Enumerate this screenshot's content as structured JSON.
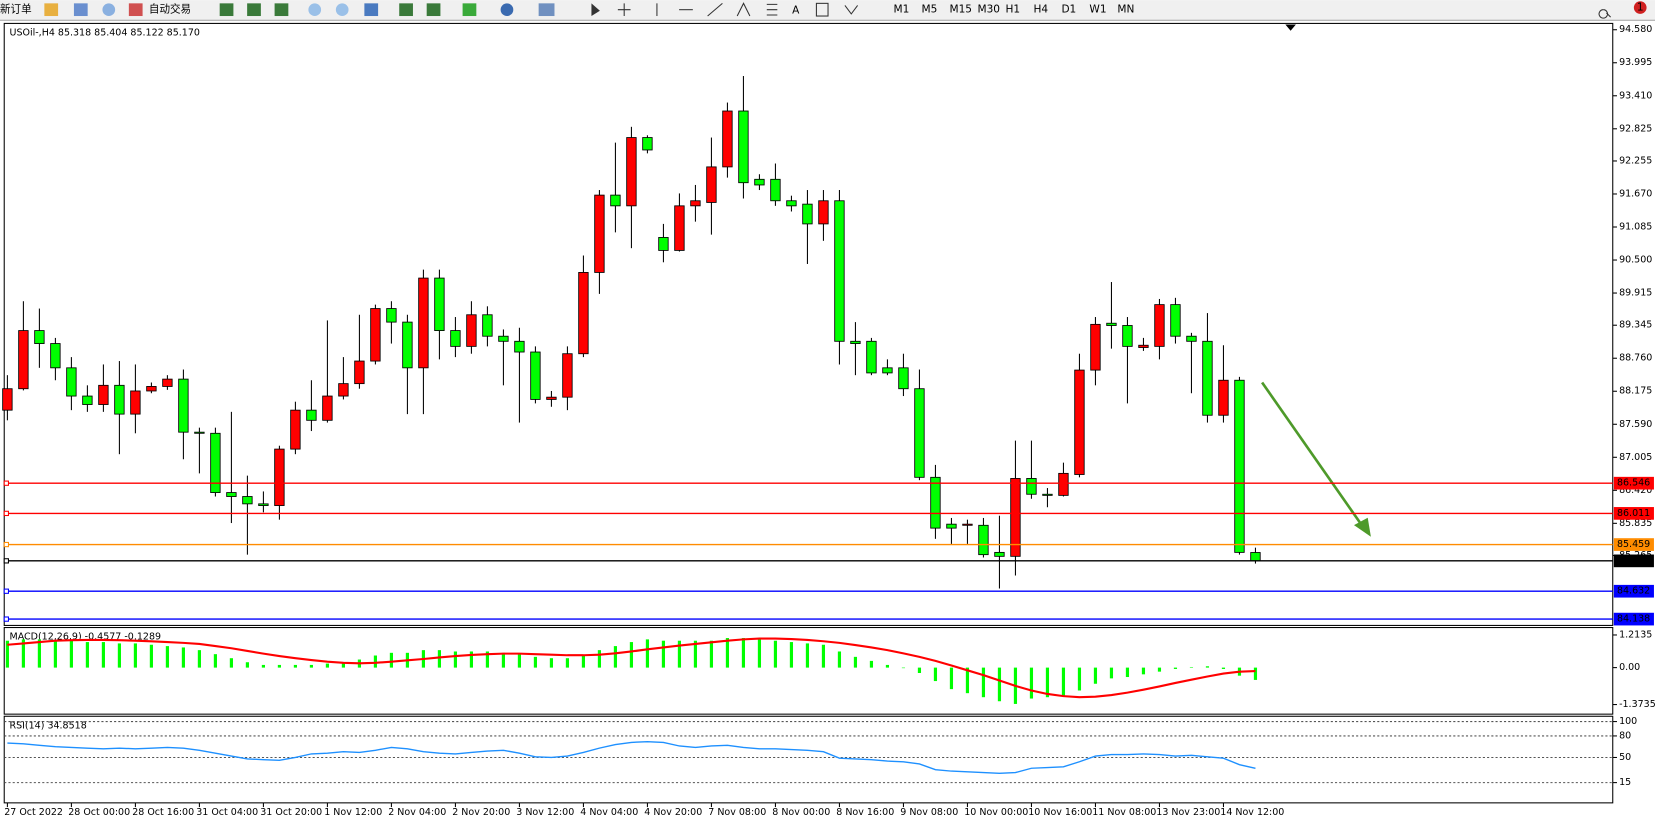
{
  "toolbar": {
    "buttons": [
      "新订单",
      "自动交易"
    ],
    "timeframes": [
      "M1",
      "M5",
      "M15",
      "M30",
      "H1",
      "H4",
      "D1",
      "W1",
      "MN"
    ],
    "notification_count": 1
  },
  "chart_data": [
    {
      "type": "candlestick",
      "title": "USOil-,H4  85.318 85.404 85.122 85.170",
      "categories": [
        "27 Oct 2022",
        null,
        null,
        null,
        "28 Oct 00:00",
        null,
        null,
        null,
        "28 Oct 16:00",
        null,
        null,
        null,
        "31 Oct 04:00",
        null,
        null,
        null,
        "31 Oct 20:00",
        null,
        null,
        null,
        "1 Nov 12:00",
        null,
        null,
        null,
        "2 Nov 04:00",
        null,
        null,
        null,
        "2 Nov 20:00",
        null,
        null,
        null,
        "3 Nov 12:00",
        null,
        null,
        null,
        "4 Nov 04:00",
        null,
        null,
        null,
        "4 Nov 20:00",
        null,
        null,
        null,
        "7 Nov 08:00",
        null,
        null,
        null,
        "8 Nov 00:00",
        null,
        null,
        null,
        "8 Nov 16:00",
        null,
        null,
        null,
        "9 Nov 08:00",
        null,
        null,
        null,
        "10 Nov 00:00",
        null,
        null,
        null,
        "10 Nov 16:00",
        null,
        null,
        null,
        "11 Nov 08:00",
        null,
        null,
        null,
        "13 Nov 23:00",
        null,
        null,
        null,
        "14 Nov 12:00",
        null,
        null
      ],
      "open": [
        87.84,
        88.22,
        89.25,
        89.02,
        88.59,
        88.09,
        87.94,
        88.28,
        87.77,
        88.18,
        88.26,
        88.39,
        87.45,
        87.43,
        86.38,
        86.31,
        86.18,
        86.15,
        87.15,
        87.84,
        87.66,
        88.09,
        88.31,
        88.71,
        89.64,
        89.4,
        88.59,
        90.18,
        89.25,
        88.97,
        89.53,
        89.15,
        89.06,
        88.87,
        88.03,
        88.07,
        88.84,
        90.28,
        91.65,
        91.46,
        92.67,
        90.9,
        90.67,
        91.46,
        91.52,
        92.15,
        93.14,
        91.93,
        91.93,
        91.55,
        91.49,
        91.14,
        91.55,
        89.06,
        89.06,
        88.59,
        88.59,
        88.22,
        86.65,
        85.82,
        85.8,
        85.8,
        85.32,
        85.25,
        86.63,
        86.35,
        86.33,
        86.7,
        88.55,
        89.38,
        89.34,
        88.95,
        88.97,
        89.71,
        89.15,
        89.06,
        87.75,
        88.37,
        85.318
      ],
      "high": [
        88.46,
        89.77,
        89.64,
        89.12,
        88.78,
        88.28,
        88.65,
        88.71,
        88.65,
        88.33,
        88.46,
        88.56,
        87.53,
        87.53,
        87.81,
        86.68,
        86.4,
        87.21,
        87.99,
        88.37,
        89.43,
        88.78,
        89.53,
        89.71,
        89.77,
        89.53,
        90.33,
        90.33,
        89.49,
        89.77,
        89.68,
        89.27,
        89.3,
        88.97,
        88.18,
        88.97,
        90.58,
        91.74,
        92.58,
        92.86,
        92.71,
        91.14,
        91.68,
        91.83,
        92.67,
        93.29,
        93.76,
        92.02,
        92.21,
        91.64,
        91.74,
        91.74,
        91.74,
        89.4,
        89.12,
        88.74,
        88.84,
        88.56,
        86.87,
        85.93,
        85.9,
        85.93,
        85.97,
        87.3,
        87.3,
        86.46,
        86.91,
        88.84,
        89.49,
        90.11,
        89.49,
        89.12,
        89.81,
        89.83,
        89.21,
        89.56,
        88.99,
        88.43,
        85.404
      ],
      "low": [
        87.66,
        88.19,
        88.59,
        88.37,
        87.84,
        87.81,
        87.81,
        87.06,
        87.43,
        88.14,
        88.2,
        86.97,
        86.72,
        86.31,
        85.84,
        85.28,
        86.03,
        85.9,
        87.06,
        87.47,
        87.62,
        88.03,
        88.22,
        88.65,
        89.02,
        87.77,
        87.77,
        88.74,
        88.78,
        88.84,
        88.97,
        88.28,
        87.62,
        87.96,
        87.9,
        87.84,
        88.78,
        89.9,
        90.99,
        90.71,
        92.39,
        90.46,
        90.65,
        91.18,
        90.95,
        91.96,
        91.59,
        91.74,
        91.46,
        91.36,
        90.43,
        90.84,
        88.65,
        88.46,
        88.46,
        88.46,
        88.09,
        86.6,
        85.56,
        85.47,
        85.47,
        85.23,
        84.68,
        84.91,
        86.27,
        86.12,
        86.31,
        86.65,
        88.28,
        88.93,
        87.96,
        88.89,
        88.74,
        89.02,
        88.14,
        87.62,
        87.62,
        85.28,
        85.122
      ],
      "close": [
        88.22,
        89.25,
        89.02,
        88.59,
        88.09,
        87.94,
        88.28,
        87.77,
        88.18,
        88.26,
        88.39,
        87.45,
        87.43,
        86.38,
        86.31,
        86.18,
        86.15,
        87.15,
        87.84,
        87.66,
        88.09,
        88.31,
        88.71,
        89.64,
        89.4,
        88.59,
        90.18,
        89.25,
        88.97,
        89.53,
        89.15,
        89.06,
        88.87,
        88.03,
        88.07,
        88.84,
        90.28,
        91.65,
        91.46,
        92.67,
        92.45,
        90.67,
        91.46,
        91.55,
        92.15,
        93.14,
        91.87,
        91.83,
        91.55,
        91.46,
        91.14,
        91.55,
        89.06,
        89.02,
        88.5,
        88.5,
        88.22,
        86.65,
        85.75,
        85.75,
        85.82,
        85.28,
        85.25,
        86.63,
        86.35,
        86.33,
        86.72,
        88.55,
        89.36,
        89.34,
        88.97,
        88.99,
        89.71,
        89.15,
        89.06,
        87.75,
        88.37,
        85.32,
        85.17
      ],
      "up_color": "#ff0000",
      "down_color": "#00ff00",
      "ylim": [
        84.026,
        94.692
      ],
      "yticks": [
        {
          "value": 94.58,
          "label": "94.580"
        },
        {
          "value": 93.995,
          "label": "93.995"
        },
        {
          "value": 93.41,
          "label": "93.410"
        },
        {
          "value": 92.825,
          "label": "92.825"
        },
        {
          "value": 92.255,
          "label": "92.255"
        },
        {
          "value": 91.67,
          "label": "91.670"
        },
        {
          "value": 91.085,
          "label": "91.085"
        },
        {
          "value": 90.5,
          "label": "90.500"
        },
        {
          "value": 89.915,
          "label": "89.915"
        },
        {
          "value": 89.345,
          "label": "89.345"
        },
        {
          "value": 88.76,
          "label": "88.760"
        },
        {
          "value": 88.175,
          "label": "88.175"
        },
        {
          "value": 87.59,
          "label": "87.590"
        },
        {
          "value": 87.005,
          "label": "87.005"
        },
        {
          "value": 86.42,
          "label": "86.420"
        },
        {
          "value": 85.835,
          "label": "85.835"
        },
        {
          "value": 85.265,
          "label": "85.265"
        }
      ],
      "levels": [
        {
          "value": 86.546,
          "color": "#ff0000"
        },
        {
          "value": 86.011,
          "color": "#ff0000"
        },
        {
          "value": 85.459,
          "color": "#ff8c00"
        },
        {
          "value": 85.17,
          "label": "85.170",
          "color": "#000000"
        },
        {
          "value": 84.632,
          "color": "#0000ff"
        },
        {
          "value": 84.138,
          "color": "#0000ff"
        }
      ]
    },
    {
      "type": "macd",
      "title": "MACD(12,26,9) -0.4577 -0.1289",
      "values": [
        1.0,
        1.05,
        1.05,
        1.0,
        1.0,
        0.95,
        0.95,
        0.9,
        0.9,
        0.85,
        0.8,
        0.75,
        0.65,
        0.5,
        0.35,
        0.2,
        0.1,
        0.1,
        0.1,
        0.1,
        0.15,
        0.2,
        0.3,
        0.45,
        0.55,
        0.55,
        0.65,
        0.65,
        0.6,
        0.6,
        0.6,
        0.55,
        0.5,
        0.4,
        0.35,
        0.35,
        0.45,
        0.65,
        0.8,
        0.95,
        1.05,
        1.0,
        1.0,
        1.0,
        1.0,
        1.1,
        1.1,
        1.05,
        1.0,
        0.95,
        0.9,
        0.85,
        0.6,
        0.4,
        0.25,
        0.1,
        0,
        -0.2,
        -0.5,
        -0.8,
        -0.95,
        -1.1,
        -1.25,
        -1.35,
        -1.15,
        -1.1,
        -1.05,
        -0.85,
        -0.6,
        -0.4,
        -0.35,
        -0.25,
        -0.15,
        -0.05,
        0.02,
        0.05,
        -0.05,
        -0.3,
        -0.4577
      ],
      "color": "#00ff00",
      "signal": [
        0.85,
        0.9,
        0.95,
        1.0,
        1.02,
        1.03,
        1.03,
        1.02,
        1.0,
        0.98,
        0.95,
        0.92,
        0.88,
        0.8,
        0.72,
        0.62,
        0.52,
        0.43,
        0.35,
        0.28,
        0.22,
        0.18,
        0.16,
        0.18,
        0.22,
        0.27,
        0.32,
        0.38,
        0.43,
        0.47,
        0.5,
        0.52,
        0.52,
        0.5,
        0.48,
        0.46,
        0.46,
        0.48,
        0.53,
        0.6,
        0.68,
        0.75,
        0.82,
        0.88,
        0.94,
        1.0,
        1.05,
        1.08,
        1.08,
        1.06,
        1.03,
        0.98,
        0.92,
        0.84,
        0.75,
        0.65,
        0.53,
        0.4,
        0.25,
        0.08,
        -0.1,
        -0.28,
        -0.48,
        -0.68,
        -0.85,
        -0.98,
        -1.06,
        -1.1,
        -1.08,
        -1.02,
        -0.93,
        -0.82,
        -0.7,
        -0.57,
        -0.45,
        -0.33,
        -0.22,
        -0.15,
        -0.1289
      ],
      "signal_color": "#ff0000",
      "ylim": [
        -1.73,
        1.49
      ],
      "yticks": [
        1.2135,
        {
          "value": 0,
          "label": "0.00"
        },
        -1.3735
      ]
    },
    {
      "type": "rsi",
      "title": "RSI(14) 34.8518",
      "values": [
        70,
        69,
        67,
        65,
        64,
        63,
        62,
        63,
        62,
        63,
        64,
        63,
        60,
        56,
        52,
        48,
        47,
        46,
        50,
        55,
        56,
        58,
        57,
        60,
        64,
        62,
        58,
        56,
        55,
        57,
        59,
        60,
        56,
        51,
        50,
        52,
        57,
        63,
        68,
        71,
        72,
        71,
        66,
        64,
        66,
        67,
        64,
        62,
        62,
        61,
        60,
        58,
        49,
        48,
        47,
        45,
        44,
        41,
        33,
        31,
        30,
        29,
        28,
        29,
        35,
        36,
        37,
        44,
        52,
        54,
        54,
        55,
        54,
        52,
        53,
        51,
        49,
        40,
        34.8518
      ],
      "color": "#1e90ff",
      "ylim": [
        -13.2,
        107.4
      ],
      "yticks": [
        100,
        80,
        50,
        15
      ],
      "grid": true
    }
  ]
}
